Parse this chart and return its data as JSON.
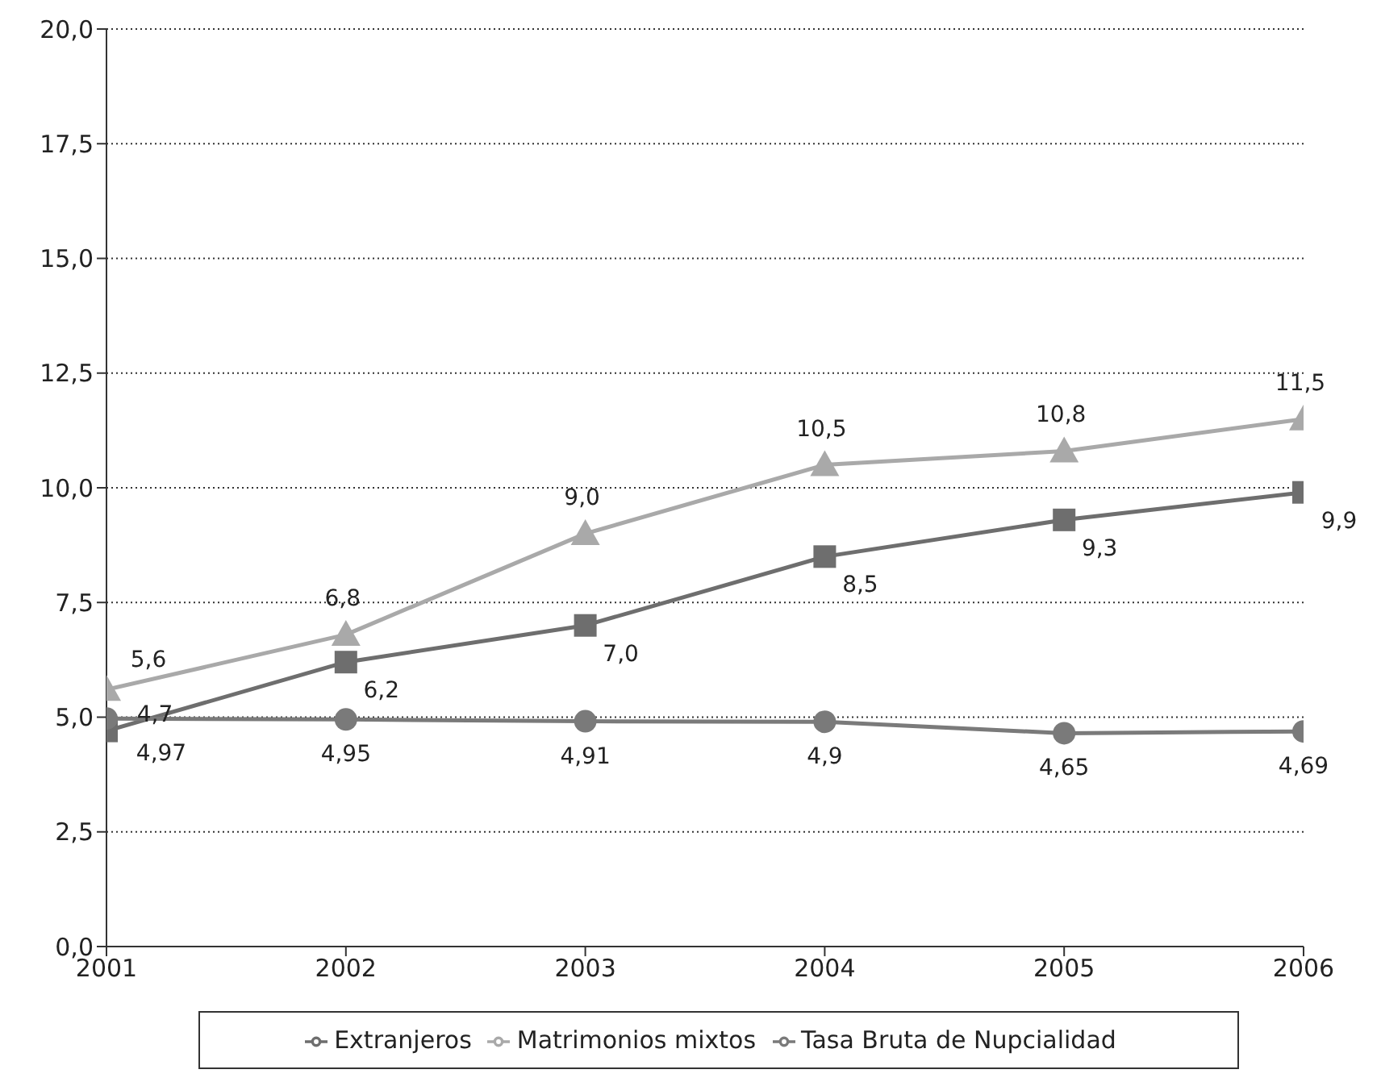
{
  "chart_data": {
    "type": "line",
    "x": [
      2001,
      2002,
      2003,
      2004,
      2005,
      2006
    ],
    "xlim": [
      2001,
      2006
    ],
    "xticks": [
      2001,
      2002,
      2003,
      2004,
      2005,
      2006
    ],
    "ylim": [
      0,
      20
    ],
    "yticks": [
      {
        "value": 0,
        "label": "0,0"
      },
      {
        "value": 2.5,
        "label": "2,5"
      },
      {
        "value": 5,
        "label": "5,0"
      },
      {
        "value": 7.5,
        "label": "7,5"
      },
      {
        "value": 10,
        "label": "10,0"
      },
      {
        "value": 12.5,
        "label": "12,5"
      },
      {
        "value": 15,
        "label": "15,0"
      },
      {
        "value": 17.5,
        "label": "17,5"
      },
      {
        "value": 20,
        "label": "20,0"
      }
    ],
    "grid": "y",
    "legend": "bottom",
    "series": [
      {
        "name": "Extranjeros",
        "color": "#6e6e6e",
        "marker": "square",
        "values": [
          4.7,
          6.2,
          7.0,
          8.5,
          9.3,
          9.9
        ],
        "value_labels": [
          "4,7",
          "6,2",
          "7,0",
          "8,5",
          "9,3",
          "9,9"
        ]
      },
      {
        "name": "Matrimonios mixtos",
        "color": "#a9a9a9",
        "marker": "triangle",
        "values": [
          5.6,
          6.8,
          9.0,
          10.5,
          10.8,
          11.5
        ],
        "value_labels": [
          "5,6",
          "6,8",
          "9,0",
          "10,5",
          "10,8",
          "11,5"
        ]
      },
      {
        "name": "Tasa Bruta de Nupcialidad",
        "color": "#7a7a7a",
        "marker": "circle",
        "values": [
          4.97,
          4.95,
          4.91,
          4.9,
          4.65,
          4.69
        ],
        "value_labels": [
          "4,97",
          "4,95",
          "4,91",
          "4,9",
          "4,65",
          "4,69"
        ]
      }
    ]
  }
}
